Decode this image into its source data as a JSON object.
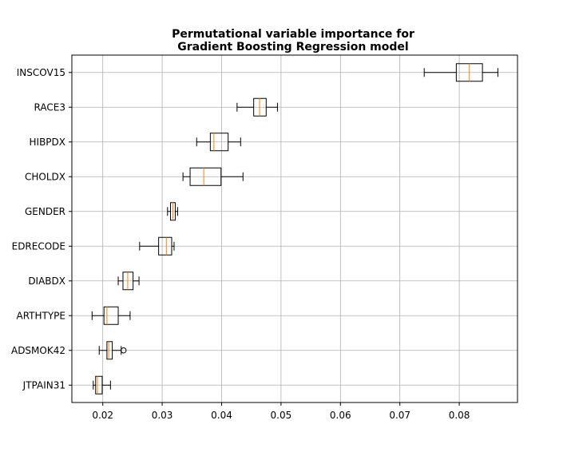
{
  "chart_data": {
    "type": "boxplot",
    "orientation": "horizontal",
    "title_lines": [
      "Permutational variable importance for",
      "Gradient Boosting Regression model"
    ],
    "xlabel": "",
    "ylabel": "",
    "xlim": [
      0.0148,
      0.0898
    ],
    "x_ticks": [
      {
        "value": 0.02,
        "label": "0.02"
      },
      {
        "value": 0.03,
        "label": "0.03"
      },
      {
        "value": 0.04,
        "label": "0.04"
      },
      {
        "value": 0.05,
        "label": "0.05"
      },
      {
        "value": 0.06,
        "label": "0.06"
      },
      {
        "value": 0.07,
        "label": "0.07"
      },
      {
        "value": 0.08,
        "label": "0.08"
      }
    ],
    "grid": true,
    "colors": {
      "box_edge": "#000000",
      "median": "#ff7f0e",
      "grid": "#b0b0b0",
      "background": "#ffffff"
    },
    "categories": [
      {
        "label": "INSCOV15",
        "whisker_low": 0.0741,
        "q1": 0.0795,
        "median": 0.0817,
        "q3": 0.0839,
        "whisker_high": 0.0865,
        "outliers": []
      },
      {
        "label": "RACE3",
        "whisker_low": 0.0426,
        "q1": 0.0454,
        "median": 0.0464,
        "q3": 0.0475,
        "whisker_high": 0.0494,
        "outliers": []
      },
      {
        "label": "HIBPDX",
        "whisker_low": 0.0358,
        "q1": 0.0381,
        "median": 0.0387,
        "q3": 0.0411,
        "whisker_high": 0.0432,
        "outliers": []
      },
      {
        "label": "CHOLDX",
        "whisker_low": 0.0335,
        "q1": 0.0347,
        "median": 0.037,
        "q3": 0.0399,
        "whisker_high": 0.0436,
        "outliers": []
      },
      {
        "label": "GENDER",
        "whisker_low": 0.0309,
        "q1": 0.0314,
        "median": 0.0318,
        "q3": 0.0322,
        "whisker_high": 0.0326,
        "outliers": []
      },
      {
        "label": "EDRECODE",
        "whisker_low": 0.0262,
        "q1": 0.0294,
        "median": 0.0307,
        "q3": 0.0316,
        "whisker_high": 0.032,
        "outliers": []
      },
      {
        "label": "DIABDX",
        "whisker_low": 0.0226,
        "q1": 0.0234,
        "median": 0.0242,
        "q3": 0.0251,
        "whisker_high": 0.0261,
        "outliers": []
      },
      {
        "label": "ARTHTYPE",
        "whisker_low": 0.0182,
        "q1": 0.0202,
        "median": 0.0207,
        "q3": 0.0226,
        "whisker_high": 0.0246,
        "outliers": []
      },
      {
        "label": "ADSMOK42",
        "whisker_low": 0.0194,
        "q1": 0.0207,
        "median": 0.021,
        "q3": 0.0216,
        "whisker_high": 0.0231,
        "outliers": [
          0.0235
        ]
      },
      {
        "label": "JTPAIN31",
        "whisker_low": 0.0184,
        "q1": 0.0188,
        "median": 0.0191,
        "q3": 0.0199,
        "whisker_high": 0.0213,
        "outliers": []
      }
    ]
  }
}
